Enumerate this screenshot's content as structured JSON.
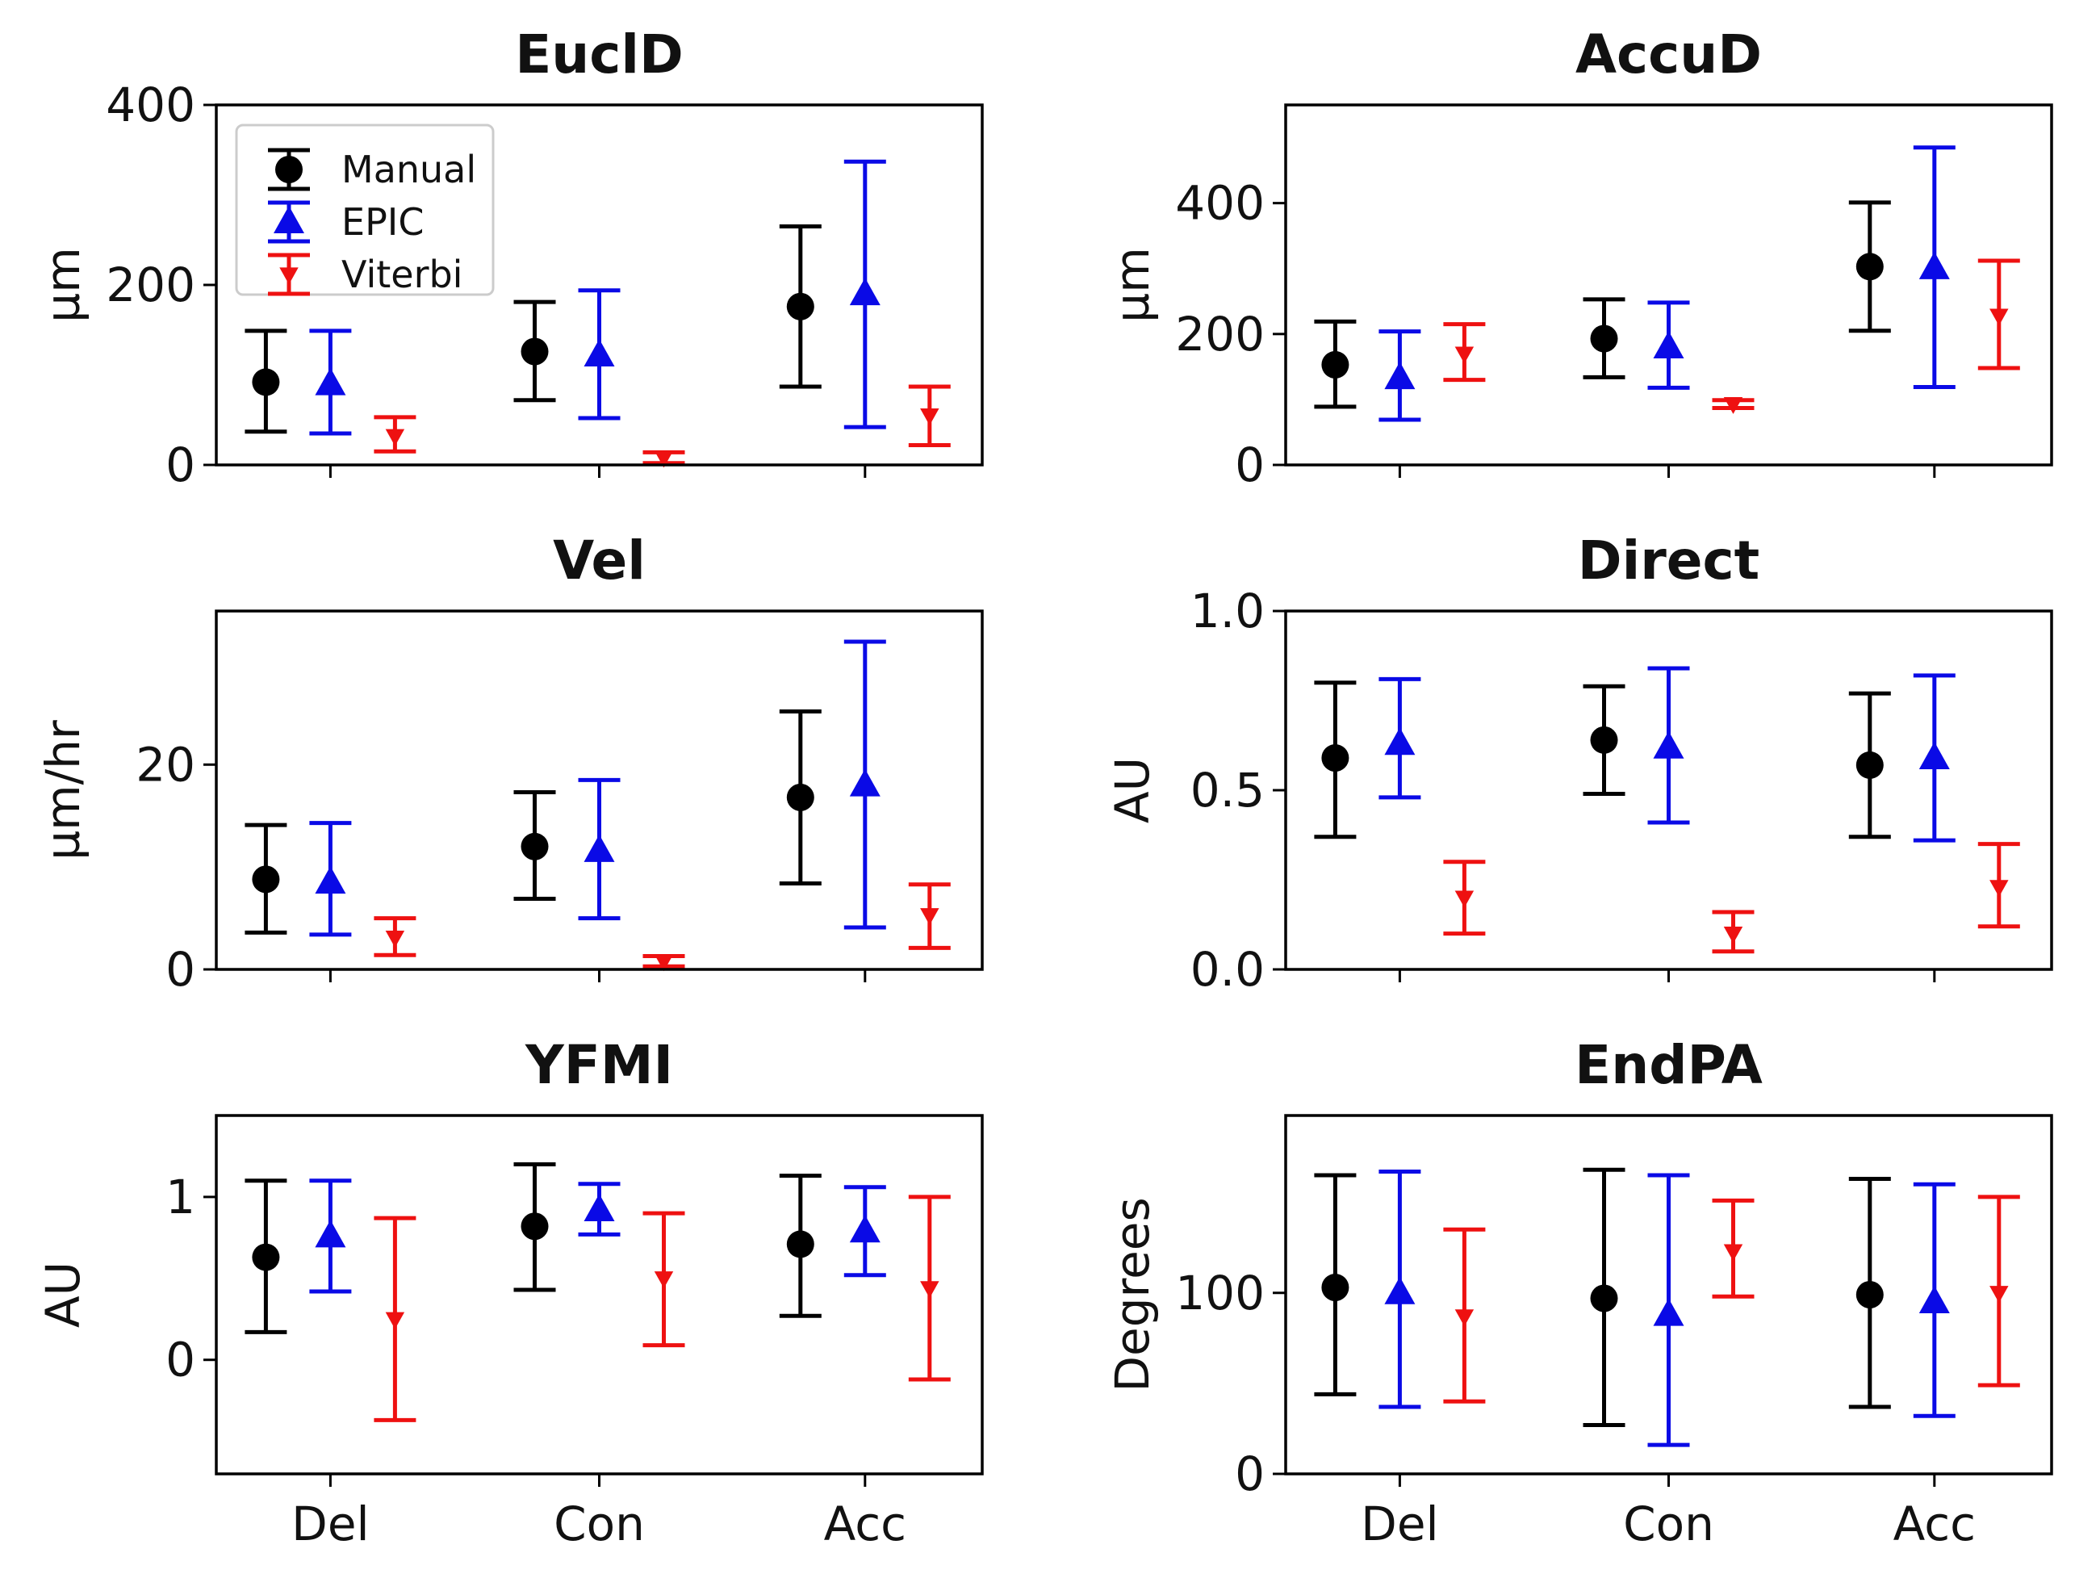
{
  "colors": {
    "manual": "#000000",
    "epic": "#0a0ae6",
    "viterbi": "#ee1111"
  },
  "legend": [
    {
      "name": "Manual",
      "marker": "circle",
      "color": "#000000"
    },
    {
      "name": "EPIC",
      "marker": "triangle-up",
      "color": "#0a0ae6"
    },
    {
      "name": "Viterbi",
      "marker": "triangle-down",
      "color": "#ee1111"
    }
  ],
  "chart_data": [
    {
      "type": "errorbar",
      "title": "EuclD",
      "ylabel": "µm",
      "ylim": [
        0,
        400
      ],
      "yticks": [
        0,
        200,
        400
      ],
      "categories": [
        "Del",
        "Con",
        "Acc"
      ],
      "show_xticklabels": false,
      "legend_position": "top-left",
      "series": [
        {
          "name": "Manual",
          "values": [
            92,
            126,
            176
          ],
          "lower": [
            37,
            72,
            87
          ],
          "upper": [
            149,
            181,
            265
          ]
        },
        {
          "name": "EPIC",
          "values": [
            90,
            122,
            190
          ],
          "lower": [
            35,
            52,
            42
          ],
          "upper": [
            149,
            194,
            337
          ]
        },
        {
          "name": "Viterbi",
          "values": [
            32,
            8,
            55
          ],
          "lower": [
            15,
            2,
            22
          ],
          "upper": [
            53,
            14,
            87
          ]
        }
      ]
    },
    {
      "type": "errorbar",
      "title": "AccuD",
      "ylabel": "µm",
      "ylim": [
        0,
        550
      ],
      "yticks": [
        0,
        200,
        400
      ],
      "categories": [
        "Del",
        "Con",
        "Acc"
      ],
      "show_xticklabels": false,
      "series": [
        {
          "name": "Manual",
          "values": [
            153,
            193,
            303
          ],
          "lower": [
            89,
            134,
            205
          ],
          "upper": [
            219,
            253,
            401
          ]
        },
        {
          "name": "EPIC",
          "values": [
            133,
            180,
            301
          ],
          "lower": [
            69,
            118,
            119
          ],
          "upper": [
            204,
            248,
            485
          ]
        },
        {
          "name": "Viterbi",
          "values": [
            170,
            93,
            228
          ],
          "lower": [
            130,
            87,
            148
          ],
          "upper": [
            215,
            99,
            312
          ]
        }
      ]
    },
    {
      "type": "errorbar",
      "title": "Vel",
      "ylabel": "µm/hr",
      "ylim": [
        0,
        35
      ],
      "yticks": [
        0,
        20
      ],
      "categories": [
        "Del",
        "Con",
        "Acc"
      ],
      "show_xticklabels": false,
      "series": [
        {
          "name": "Manual",
          "values": [
            8.8,
            12.0,
            16.8
          ],
          "lower": [
            3.6,
            6.9,
            8.4
          ],
          "upper": [
            14.1,
            17.3,
            25.2
          ]
        },
        {
          "name": "EPIC",
          "values": [
            8.5,
            11.6,
            18.0
          ],
          "lower": [
            3.4,
            5.0,
            4.1
          ],
          "upper": [
            14.3,
            18.5,
            32.0
          ]
        },
        {
          "name": "Viterbi",
          "values": [
            3.1,
            0.8,
            5.3
          ],
          "lower": [
            1.4,
            0.3,
            2.1
          ],
          "upper": [
            5.0,
            1.3,
            8.3
          ]
        }
      ]
    },
    {
      "type": "errorbar",
      "title": "Direct",
      "ylabel": "AU",
      "ylim": [
        0,
        1
      ],
      "yticks": [
        0.0,
        0.5,
        1.0
      ],
      "tick_format": "1dp",
      "categories": [
        "Del",
        "Con",
        "Acc"
      ],
      "show_xticklabels": false,
      "series": [
        {
          "name": "Manual",
          "values": [
            0.59,
            0.64,
            0.57
          ],
          "lower": [
            0.37,
            0.49,
            0.37
          ],
          "upper": [
            0.8,
            0.79,
            0.77
          ]
        },
        {
          "name": "EPIC",
          "values": [
            0.63,
            0.62,
            0.59
          ],
          "lower": [
            0.48,
            0.41,
            0.36
          ],
          "upper": [
            0.81,
            0.84,
            0.82
          ]
        },
        {
          "name": "Viterbi",
          "values": [
            0.2,
            0.1,
            0.23
          ],
          "lower": [
            0.1,
            0.05,
            0.12
          ],
          "upper": [
            0.3,
            0.16,
            0.35
          ]
        }
      ]
    },
    {
      "type": "errorbar",
      "title": "YFMI",
      "ylabel": "AU",
      "ylim": [
        -0.7,
        1.5
      ],
      "yticks": [
        0,
        1
      ],
      "categories": [
        "Del",
        "Con",
        "Acc"
      ],
      "show_xticklabels": true,
      "series": [
        {
          "name": "Manual",
          "values": [
            0.63,
            0.82,
            0.71
          ],
          "lower": [
            0.17,
            0.43,
            0.27
          ],
          "upper": [
            1.1,
            1.2,
            1.13
          ]
        },
        {
          "name": "EPIC",
          "values": [
            0.76,
            0.92,
            0.79
          ],
          "lower": [
            0.42,
            0.77,
            0.52
          ],
          "upper": [
            1.1,
            1.08,
            1.06
          ]
        },
        {
          "name": "Viterbi",
          "values": [
            0.25,
            0.5,
            0.44
          ],
          "lower": [
            -0.37,
            0.09,
            -0.12
          ],
          "upper": [
            0.87,
            0.9,
            1.0
          ]
        }
      ]
    },
    {
      "type": "errorbar",
      "title": "EndPA",
      "ylabel": "Degrees",
      "ylim": [
        0,
        198
      ],
      "yticks": [
        0,
        100
      ],
      "categories": [
        "Del",
        "Con",
        "Acc"
      ],
      "show_xticklabels": true,
      "series": [
        {
          "name": "Manual",
          "values": [
            103,
            97,
            99
          ],
          "lower": [
            44,
            27,
            37
          ],
          "upper": [
            165,
            168,
            163
          ]
        },
        {
          "name": "EPIC",
          "values": [
            100,
            88,
            95
          ],
          "lower": [
            37,
            16,
            32
          ],
          "upper": [
            167,
            165,
            160
          ]
        },
        {
          "name": "Viterbi",
          "values": [
            87,
            123,
            100
          ],
          "lower": [
            40,
            98,
            49
          ],
          "upper": [
            135,
            151,
            153
          ]
        }
      ]
    }
  ]
}
